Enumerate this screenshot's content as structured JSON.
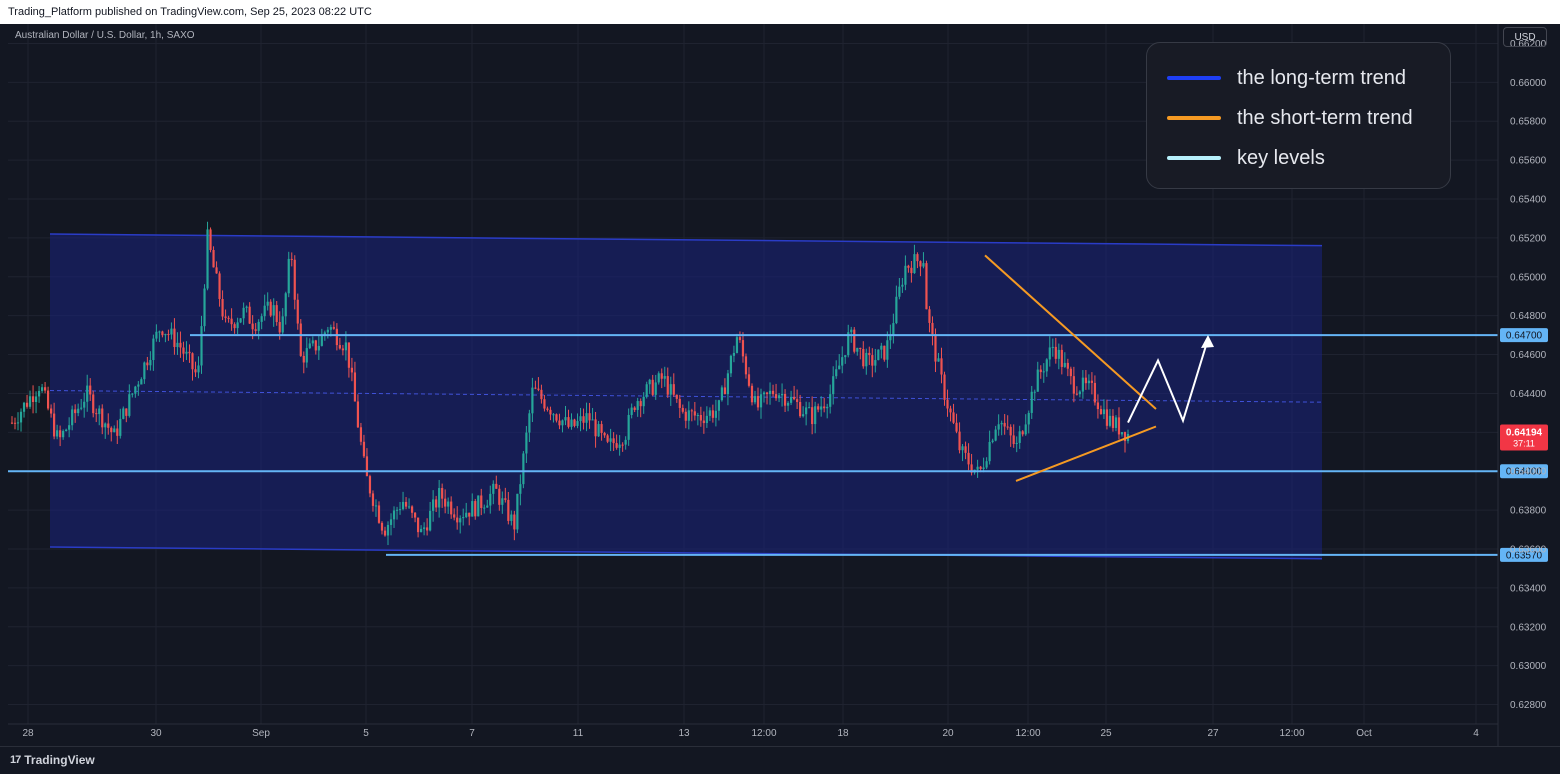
{
  "header": {
    "published": "Trading_Platform published on TradingView.com, Sep 25, 2023 08:22 UTC"
  },
  "symbol": {
    "title": "Australian Dollar / U.S. Dollar, 1h, SAXO"
  },
  "currency_button": "USD",
  "legend": [
    {
      "label": "the long-term trend",
      "color": "#1e3ff5"
    },
    {
      "label": "the short-term trend",
      "color": "#f59a23"
    },
    {
      "label": "key levels",
      "color": "#b6f0fb"
    }
  ],
  "footer": {
    "brand": "TradingView",
    "logo": "tradingview-logo-icon"
  },
  "colors": {
    "up": "#26a69a",
    "down": "#ef5350",
    "channel": "#1a237e",
    "key_level": "#64b5f6",
    "current": "#f23645"
  },
  "chart_data": {
    "type": "candlestick",
    "title": "Australian Dollar / U.S. Dollar, 1h, SAXO",
    "ylim": [
      0.627,
      0.663
    ],
    "y_ticks": [
      "0.66200",
      "0.66000",
      "0.65800",
      "0.65600",
      "0.65400",
      "0.65200",
      "0.65000",
      "0.64800",
      "0.64600",
      "0.64400",
      "0.64200",
      "0.64000",
      "0.63800",
      "0.63600",
      "0.63400",
      "0.63200",
      "0.63000",
      "0.62800"
    ],
    "x_ticks": [
      "28",
      "30",
      "Sep",
      "5",
      "7",
      "11",
      "13",
      "12:00",
      "18",
      "20",
      "12:00",
      "25",
      "27",
      "12:00",
      "Oct",
      "4"
    ],
    "price_path": [
      [
        0,
        0.6425
      ],
      [
        1.5,
        0.6445
      ],
      [
        2.5,
        0.6415
      ],
      [
        4,
        0.644
      ],
      [
        5.5,
        0.6418
      ],
      [
        7,
        0.6452
      ],
      [
        8,
        0.6475
      ],
      [
        9,
        0.6465
      ],
      [
        10,
        0.6448
      ],
      [
        10.5,
        0.652
      ],
      [
        11.5,
        0.6474
      ],
      [
        12.5,
        0.6482
      ],
      [
        13,
        0.6476
      ],
      [
        14,
        0.6485
      ],
      [
        14.5,
        0.6472
      ],
      [
        15,
        0.6515
      ],
      [
        15.5,
        0.6458
      ],
      [
        16.5,
        0.6466
      ],
      [
        17,
        0.6475
      ],
      [
        18,
        0.6464
      ],
      [
        19,
        0.6398
      ],
      [
        20,
        0.637
      ],
      [
        21,
        0.6385
      ],
      [
        22,
        0.6368
      ],
      [
        23,
        0.6388
      ],
      [
        24,
        0.6378
      ],
      [
        25,
        0.6382
      ],
      [
        26,
        0.639
      ],
      [
        27,
        0.6372
      ],
      [
        28,
        0.6442
      ],
      [
        29,
        0.6432
      ],
      [
        30,
        0.6422
      ],
      [
        31,
        0.6428
      ],
      [
        32,
        0.6412
      ],
      [
        33,
        0.642
      ],
      [
        33.5,
        0.6436
      ],
      [
        35,
        0.6448
      ],
      [
        36,
        0.643
      ],
      [
        37,
        0.6428
      ],
      [
        38,
        0.6432
      ],
      [
        39,
        0.647
      ],
      [
        40,
        0.6432
      ],
      [
        41,
        0.6442
      ],
      [
        42,
        0.6436
      ],
      [
        43,
        0.6428
      ],
      [
        44,
        0.644
      ],
      [
        45,
        0.647
      ],
      [
        46,
        0.6455
      ],
      [
        47,
        0.6462
      ],
      [
        48,
        0.6505
      ],
      [
        49,
        0.651
      ],
      [
        49.2,
        0.648
      ],
      [
        50,
        0.6445
      ],
      [
        51,
        0.641
      ],
      [
        52,
        0.6398
      ],
      [
        53,
        0.6428
      ],
      [
        54,
        0.6412
      ],
      [
        55,
        0.6445
      ],
      [
        56,
        0.6465
      ],
      [
        57,
        0.6445
      ],
      [
        58,
        0.6442
      ],
      [
        59,
        0.6426
      ],
      [
        60,
        0.6419
      ]
    ],
    "current_price": "0.64194",
    "countdown": "37:11",
    "key_levels": [
      "0.64700",
      "0.64000",
      "0.63570"
    ],
    "channel": {
      "upper_start": 0.6522,
      "upper_end": 0.6516,
      "lower_start": 0.6361,
      "lower_end": 0.6355
    },
    "short_term_trend": [
      {
        "from": 0.6511,
        "to": 0.6432
      },
      {
        "from": 0.6395,
        "to": 0.6423
      }
    ],
    "projection": [
      0.6425,
      0.6457,
      0.6426,
      0.6468
    ]
  }
}
